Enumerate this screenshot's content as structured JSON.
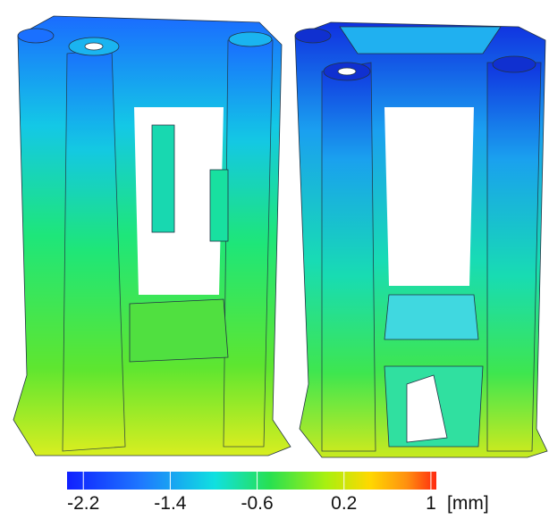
{
  "colorbar": {
    "range": [
      -2.35,
      1.05
    ],
    "ticks": [
      -2.2,
      -1.4,
      -0.6,
      0.2,
      1
    ],
    "unit": "[mm]"
  }
}
